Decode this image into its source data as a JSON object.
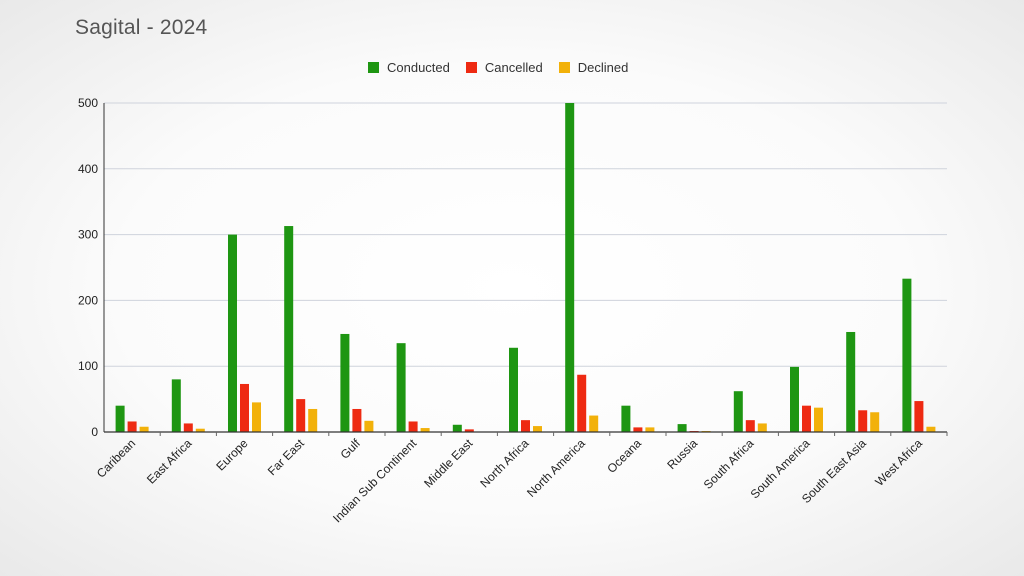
{
  "chart_data": {
    "type": "bar",
    "title": "Sagital - 2024",
    "xlabel": "",
    "ylabel": "",
    "ylim": [
      0,
      500
    ],
    "yticks": [
      0,
      100,
      200,
      300,
      400,
      500
    ],
    "grid": true,
    "legend_position": "top-center",
    "categories": [
      "Caribean",
      "East Africa",
      "Europe",
      "Far East",
      "Gulf",
      "Indian Sub Continent",
      "Middle East",
      "North Africa",
      "North America",
      "Oceana",
      "Russia",
      "South Africa",
      "South America",
      "South East Asia",
      "West Africa"
    ],
    "series": [
      {
        "name": "Conducted",
        "color": "#1e9612",
        "values": [
          40,
          80,
          300,
          313,
          149,
          135,
          11,
          128,
          500,
          40,
          12,
          62,
          99,
          152,
          233
        ]
      },
      {
        "name": "Cancelled",
        "color": "#ee2a12",
        "values": [
          16,
          13,
          73,
          50,
          35,
          16,
          4,
          18,
          87,
          7,
          1,
          18,
          40,
          33,
          47
        ]
      },
      {
        "name": "Declined",
        "color": "#f2b10a",
        "values": [
          8,
          5,
          45,
          35,
          17,
          6,
          0,
          9,
          25,
          7,
          1,
          13,
          37,
          30,
          8
        ]
      }
    ]
  }
}
